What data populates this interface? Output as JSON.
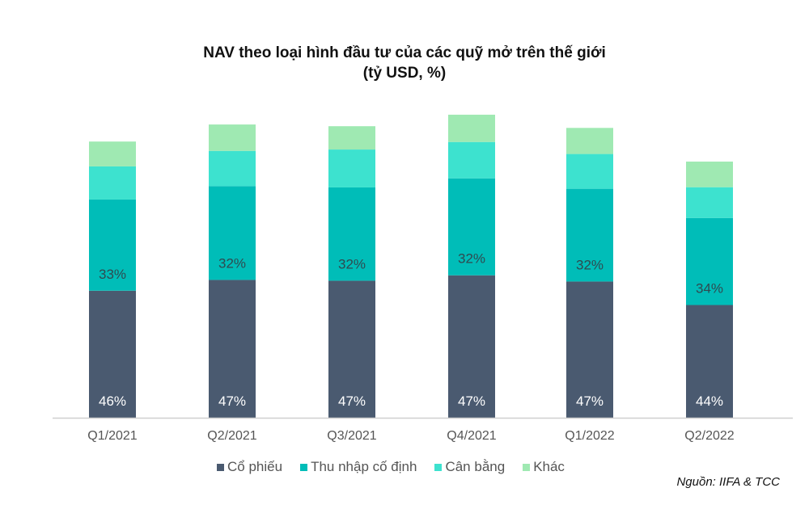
{
  "chart_data": {
    "type": "bar",
    "stacked": true,
    "title": "NAV theo loại hình đầu tư của các quỹ mở trên thế giới",
    "subtitle": "(tỷ USD, %)",
    "xlabel": "",
    "ylabel": "",
    "ylim": [
      0,
      80000
    ],
    "grid": false,
    "legend_position": "bottom",
    "categories": [
      "Q1/2021",
      "Q2/2021",
      "Q3/2021",
      "Q4/2021",
      "Q1/2022",
      "Q2/2022"
    ],
    "totals": [
      64800,
      68800,
      68400,
      71100,
      68000,
      60100
    ],
    "series": [
      {
        "name": "Cổ phiếu",
        "color": "#4a5a70",
        "shares": [
          46,
          47,
          47,
          47,
          47,
          44
        ],
        "labels": [
          "46%",
          "47%",
          "47%",
          "47%",
          "47%",
          "44%"
        ]
      },
      {
        "name": "Thu nhập cố định",
        "color": "#00bdb8",
        "shares": [
          33,
          32,
          32,
          32,
          32,
          34
        ],
        "labels": [
          "33%",
          "32%",
          "32%",
          "32%",
          "32%",
          "34%"
        ]
      },
      {
        "name": "Cân bằng",
        "color": "#3de2cf",
        "shares": [
          12,
          12,
          13,
          12,
          12,
          12
        ]
      },
      {
        "name": "Khác",
        "color": "#9fe9b2",
        "shares": [
          9,
          9,
          8,
          9,
          9,
          10
        ]
      }
    ]
  },
  "source": "Nguồn: IIFA & TCC"
}
